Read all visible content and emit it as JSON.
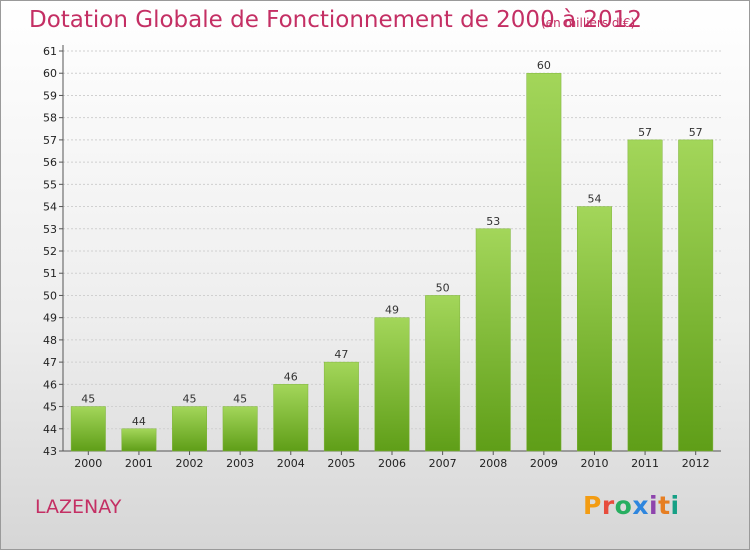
{
  "title": "Dotation Globale de Fonctionnement de 2000 à 2012",
  "unit": "(en milliers d'€)",
  "commune": "LAZENAY",
  "logo_text": "Proxiti",
  "colors": {
    "title": "#c42f64",
    "bar_top": "#a3d65a",
    "bar_bottom": "#5f9e18",
    "grid": "#d0d0d0"
  },
  "chart_data": {
    "type": "bar",
    "categories": [
      "2000",
      "2001",
      "2002",
      "2003",
      "2004",
      "2005",
      "2006",
      "2007",
      "2008",
      "2009",
      "2010",
      "2011",
      "2012"
    ],
    "values": [
      45,
      44,
      45,
      45,
      46,
      47,
      49,
      50,
      53,
      60,
      54,
      57,
      57
    ],
    "ylim": [
      43,
      61
    ],
    "yticks": [
      43,
      44,
      45,
      46,
      47,
      48,
      49,
      50,
      51,
      52,
      53,
      54,
      55,
      56,
      57,
      58,
      59,
      60,
      61
    ],
    "grid": true
  }
}
